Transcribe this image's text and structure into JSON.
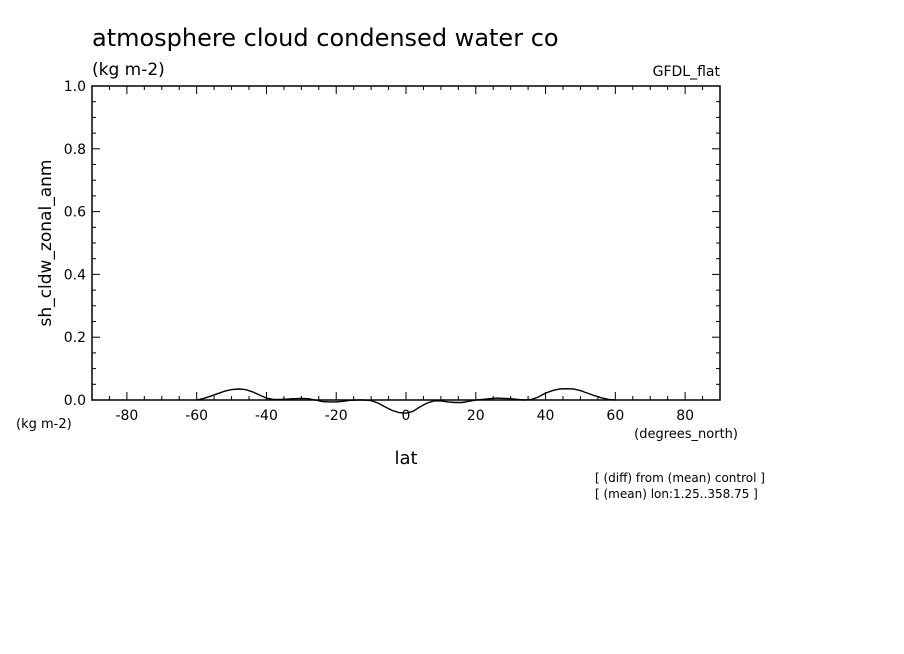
{
  "chart_data": {
    "type": "line",
    "title": "atmosphere cloud condensed water co",
    "subtitle": "(kg m-2)",
    "model_label": "GFDL_flat",
    "xlabel": "lat",
    "ylabel": "sh_cldw_zonal_anm",
    "x_unit_label": "(degrees_north)",
    "y_unit_label": "(kg m-2)",
    "xlim": [
      -90,
      90
    ],
    "ylim": [
      0,
      1.0
    ],
    "x_ticks": [
      -80,
      -60,
      -40,
      -20,
      0,
      20,
      40,
      60,
      80
    ],
    "x_tick_labels": [
      "-80",
      "-60",
      "-40",
      "-20",
      "0",
      "20",
      "40",
      "60",
      "80"
    ],
    "y_ticks": [
      0,
      0.2,
      0.4,
      0.6,
      0.8,
      1.0
    ],
    "y_tick_labels": [
      "0.0",
      "0.2",
      "0.4",
      "0.6",
      "0.8",
      "1.0"
    ],
    "grid": false,
    "notes": [
      "[ (diff) from (mean) control ]",
      "[ (mean) lon:1.25..358.75 ]"
    ],
    "series": [
      {
        "x": [
          -60,
          -58,
          -56,
          -54,
          -52,
          -50,
          -48,
          -46,
          -44,
          -42,
          -40,
          -38,
          -36,
          -34,
          -32,
          -30,
          -28,
          -26,
          -24,
          -22,
          -20,
          -18,
          -16,
          -14,
          -12,
          -10,
          -8,
          -6,
          -4,
          -2,
          0,
          2,
          4,
          6,
          8,
          10,
          12,
          14,
          16,
          18,
          20,
          22,
          24,
          26,
          28,
          30,
          32,
          34,
          36,
          38,
          40,
          42,
          44,
          46,
          48,
          50,
          52,
          54,
          56,
          58,
          60
        ],
        "y": [
          0.0,
          0.005,
          0.012,
          0.02,
          0.028,
          0.033,
          0.035,
          0.033,
          0.026,
          0.016,
          0.006,
          0.002,
          0.002,
          0.003,
          0.004,
          0.005,
          0.004,
          0.0,
          -0.005,
          -0.006,
          -0.006,
          -0.004,
          -0.001,
          0.0,
          0.0,
          -0.002,
          -0.01,
          -0.022,
          -0.033,
          -0.04,
          -0.042,
          -0.036,
          -0.022,
          -0.01,
          -0.003,
          -0.003,
          -0.006,
          -0.008,
          -0.008,
          -0.004,
          0.0,
          0.002,
          0.004,
          0.006,
          0.005,
          0.004,
          0.002,
          0.0,
          0.002,
          0.01,
          0.022,
          0.03,
          0.035,
          0.036,
          0.035,
          0.03,
          0.022,
          0.014,
          0.007,
          0.002,
          0.0
        ]
      }
    ]
  }
}
